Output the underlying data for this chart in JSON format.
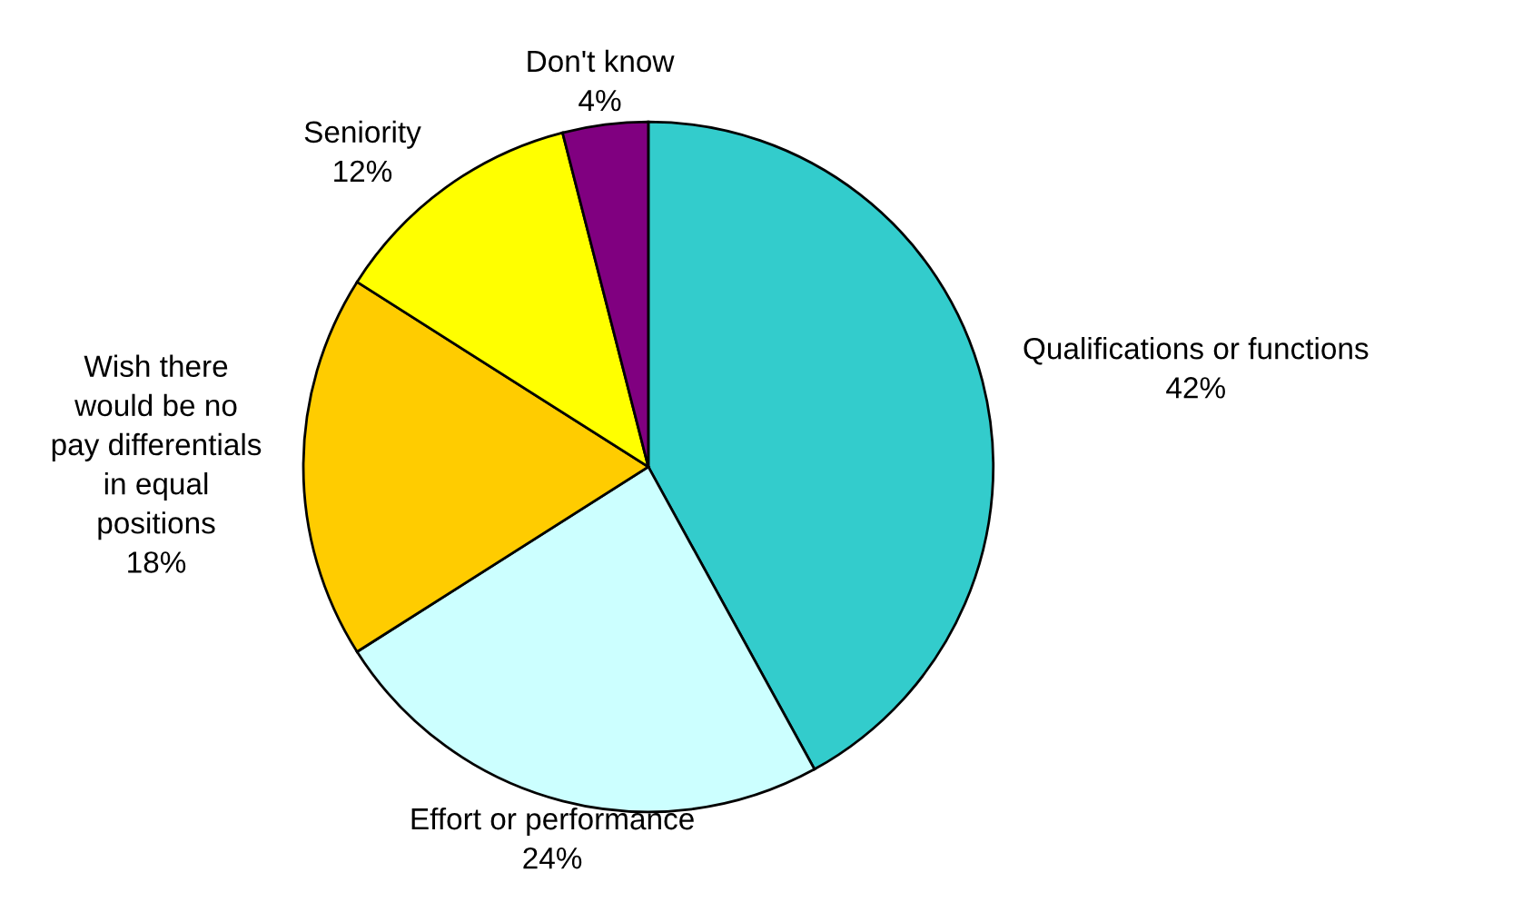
{
  "chart_data": {
    "type": "pie",
    "categories": [
      "Qualifications or functions",
      "Effort or performance",
      "Wish there\nwould be no\npay differentials\nin equal\npositions",
      "Seniority",
      "Don't know"
    ],
    "values": [
      42,
      24,
      18,
      12,
      4
    ],
    "colors": [
      "#33cccc",
      "#ccffff",
      "#ffcc00",
      "#ffff00",
      "#800080"
    ],
    "value_labels": [
      "42%",
      "24%",
      "18%",
      "12%",
      "4%"
    ]
  }
}
